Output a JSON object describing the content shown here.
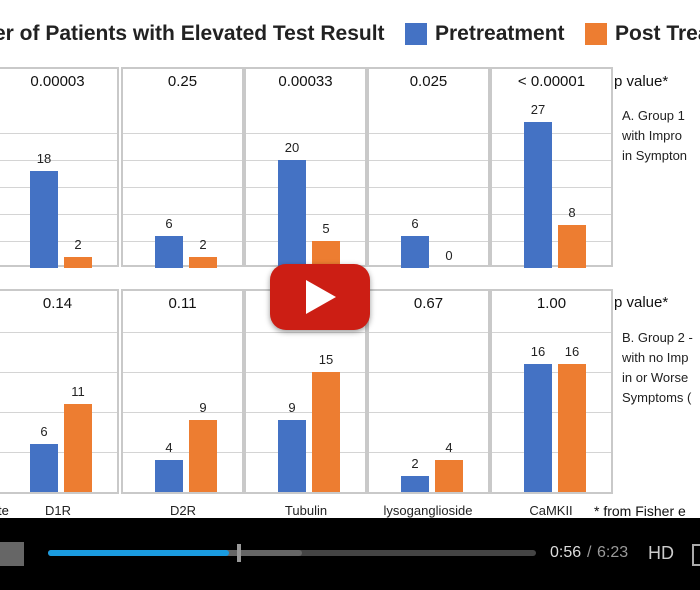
{
  "video": {
    "title": "er of Patients with Elevated Test Result",
    "legend": [
      {
        "label": "Pretreatment",
        "color": "#4472c4"
      },
      {
        "label": "Post Trea",
        "color": "#ed7d31"
      }
    ]
  },
  "player": {
    "current_time": "0:56",
    "separator": "/",
    "duration": "6:23",
    "hd_label": "HD",
    "progress": 0.37,
    "buffered": 0.52
  },
  "chart_data": [
    {
      "type": "bar",
      "categories": [
        "D1R",
        "D2R",
        "Tubulin",
        "lysoganglioside",
        "CaMKII"
      ],
      "series": [
        {
          "name": "Pretreatment",
          "values": [
            18,
            6,
            20,
            6,
            27
          ]
        },
        {
          "name": "Post Trea",
          "values": [
            2,
            2,
            5,
            0,
            8
          ]
        }
      ],
      "p_values": [
        "0.00003",
        "0.25",
        "0.00033",
        "0.025",
        "< 0.00001"
      ],
      "p_label": "p value*",
      "note": "A. Group 1\nwith Impro\nin Sympton"
    },
    {
      "type": "bar",
      "categories": [
        "D1R",
        "D2R",
        "Tubulin",
        "lysoganglioside",
        "CaMKII"
      ],
      "series": [
        {
          "name": "Pretreatment",
          "values": [
            6,
            4,
            9,
            2,
            16
          ]
        },
        {
          "name": "Post Trea",
          "values": [
            11,
            9,
            15,
            4,
            16
          ]
        }
      ],
      "p_values": [
        "0.14",
        "0.11",
        "",
        "0.67",
        "1.00"
      ],
      "p_label": "p value*",
      "note": "B. Group 2 -\nwith no Imp\nin or Worse\nSymptoms (",
      "x_labels": [
        "D1R",
        "D2R",
        "Tubulin",
        "lysoganglioside",
        "CaMKII"
      ],
      "left_cut_label": "te",
      "footnote": "* from Fisher e"
    }
  ]
}
